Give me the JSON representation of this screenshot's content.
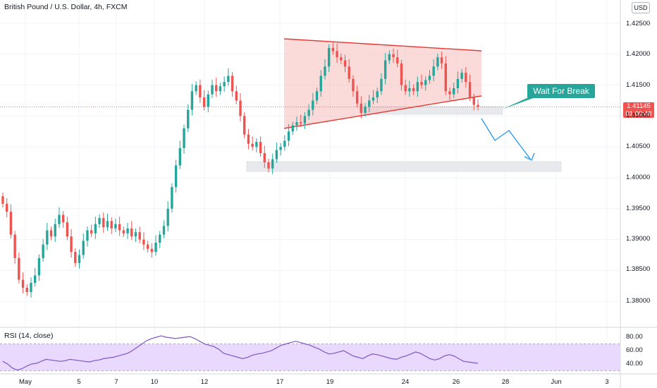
{
  "header": {
    "title": "British Pound / U.S. Dollar, 4h, FXCM",
    "currency": "USD"
  },
  "price_badge": {
    "price": "1.41145",
    "countdown": "01:00:48"
  },
  "annotation": {
    "callout": "Wait For Break"
  },
  "rsi": {
    "label": "RSI (14, close)"
  },
  "colors": {
    "up": "#26a69a",
    "down": "#ef5350",
    "triangle_line": "#e53935",
    "triangle_fill": "#f7c3c2",
    "rsi_line": "#7e57c2",
    "rsi_band": "#e9d9ff",
    "zone": "#e8e9ed",
    "callout_bg": "#26a69a"
  },
  "chart_data": [
    {
      "type": "candlestick",
      "title": "British Pound / U.S. Dollar, 4h, FXCM",
      "y_ticks": [
        "1.42500",
        "1.42000",
        "1.41500",
        "1.41000",
        "1.40500",
        "1.40000",
        "1.39500",
        "1.39000",
        "1.38500",
        "1.38000"
      ],
      "x_ticks": [
        "May",
        "5",
        "7",
        "10",
        "12",
        "17",
        "19",
        "24",
        "26",
        "28",
        "Jun",
        "3"
      ],
      "ylim": [
        1.3765,
        1.4285
      ],
      "last_price": 1.41145,
      "ohlc_close": [
        1.3958,
        1.3945,
        1.3908,
        1.387,
        1.3835,
        1.3822,
        1.3815,
        1.383,
        1.3842,
        1.387,
        1.3892,
        1.3915,
        1.3905,
        1.3925,
        1.394,
        1.3928,
        1.3905,
        1.388,
        1.3862,
        1.3875,
        1.3898,
        1.3915,
        1.391,
        1.3925,
        1.3935,
        1.392,
        1.393,
        1.3918,
        1.3925,
        1.3915,
        1.391,
        1.3918,
        1.3905,
        1.3912,
        1.39,
        1.3892,
        1.3885,
        1.388,
        1.3895,
        1.3908,
        1.3922,
        1.395,
        1.3985,
        1.402,
        1.4048,
        1.408,
        1.411,
        1.414,
        1.415,
        1.413,
        1.4115,
        1.4135,
        1.415,
        1.414,
        1.4148,
        1.4155,
        1.4165,
        1.414,
        1.4125,
        1.41,
        1.407,
        1.4055,
        1.405,
        1.4058,
        1.404,
        1.4025,
        1.4015,
        1.403,
        1.4045,
        1.405,
        1.406,
        1.4075,
        1.4085,
        1.409,
        1.4088,
        1.41,
        1.411,
        1.4125,
        1.414,
        1.4165,
        1.418,
        1.421,
        1.4205,
        1.4195,
        1.419,
        1.418,
        1.416,
        1.414,
        1.412,
        1.4105,
        1.4115,
        1.4125,
        1.413,
        1.414,
        1.416,
        1.419,
        1.42,
        1.4195,
        1.4185,
        1.415,
        1.414,
        1.4145,
        1.414,
        1.4155,
        1.415,
        1.4158,
        1.4165,
        1.418,
        1.4195,
        1.4185,
        1.414,
        1.4135,
        1.4145,
        1.416,
        1.417,
        1.4155,
        1.413,
        1.4118,
        1.4115
      ]
    },
    {
      "type": "line",
      "title": "RSI (14, close)",
      "y_ticks": [
        "80.00",
        "60.00",
        "40.00"
      ],
      "ylim": [
        25,
        88
      ],
      "band": [
        30,
        70
      ],
      "values": [
        44,
        40,
        34,
        31,
        33,
        37,
        40,
        41,
        44,
        47,
        46,
        45,
        44,
        45,
        47,
        46,
        45,
        44,
        43,
        45,
        46,
        48,
        49,
        50,
        52,
        54,
        56,
        60,
        65,
        70,
        75,
        78,
        80,
        82,
        80,
        79,
        78,
        79,
        80,
        81,
        78,
        74,
        70,
        68,
        66,
        62,
        56,
        54,
        52,
        50,
        48,
        50,
        53,
        55,
        56,
        58,
        60,
        64,
        68,
        70,
        72,
        74,
        72,
        70,
        68,
        65,
        62,
        58,
        55,
        56,
        58,
        60,
        56,
        52,
        50,
        48,
        52,
        55,
        54,
        52,
        50,
        48,
        47,
        50,
        52,
        55,
        58,
        56,
        52,
        48,
        46,
        48,
        52,
        54,
        52,
        48,
        44,
        43,
        42,
        41
      ]
    }
  ]
}
